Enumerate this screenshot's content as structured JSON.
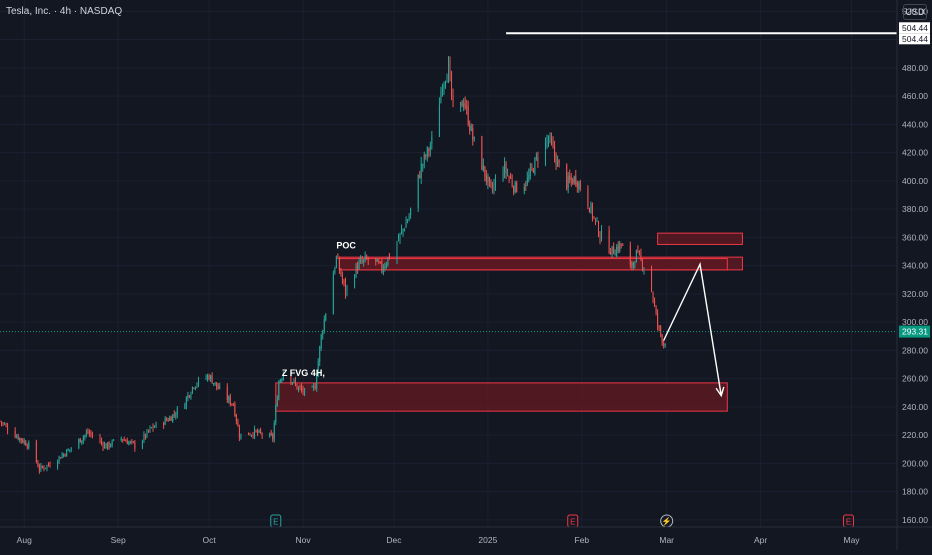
{
  "header": {
    "symbol": "Tesla, Inc. · 4h · NASDAQ",
    "currency": "USD"
  },
  "colors": {
    "background": "#131722",
    "up": "#26a69a",
    "down": "#ef5350",
    "axis_text": "#b2b5be",
    "zone_fill": "#5c1a22",
    "zone_stroke": "#f23645",
    "price_tag": "#089981"
  },
  "chart_data": {
    "type": "candlestick",
    "title": "Tesla, Inc. · 4h · NASDAQ",
    "y_ticks": [
      160,
      180,
      200,
      220,
      240,
      260,
      280,
      300,
      320,
      340,
      360,
      380,
      400,
      420,
      440,
      460,
      480,
      500,
      520
    ],
    "y_tick_labels": [
      "160.00",
      "180.00",
      "200.00",
      "220.00",
      "240.00",
      "260.00",
      "280.00",
      "300.00",
      "320.00",
      "340.00",
      "360.00",
      "380.00",
      "400.00",
      "420.00",
      "440.00",
      "460.00",
      "480.00",
      "500.00",
      "520.00"
    ],
    "ylim": [
      155,
      528
    ],
    "x_labels": [
      "Aug",
      "Sep",
      "Oct",
      "Nov",
      "Dec",
      "2025",
      "Feb",
      "Mar",
      "Apr",
      "May"
    ],
    "x_label_dates": [
      "2024-08-01",
      "2024-09-01",
      "2024-10-01",
      "2024-11-01",
      "2024-12-01",
      "2025-01-01",
      "2025-02-01",
      "2025-03-01",
      "2025-04-01",
      "2025-05-01"
    ],
    "xlim": [
      "2024-07-24",
      "2025-05-16"
    ],
    "current_price": "293.31",
    "current_price_value": 293.31,
    "horizontal_line": {
      "value": 504.44,
      "labels": [
        "504.44",
        "504.44"
      ],
      "start_date": "2025-01-07"
    },
    "price_path": [
      [
        "2024-07-24",
        230
      ],
      [
        "2024-07-28",
        222
      ],
      [
        "2024-08-03",
        212
      ],
      [
        "2024-08-06",
        196
      ],
      [
        "2024-08-10",
        200
      ],
      [
        "2024-08-16",
        210
      ],
      [
        "2024-08-22",
        222
      ],
      [
        "2024-08-28",
        212
      ],
      [
        "2024-09-02",
        218
      ],
      [
        "2024-09-07",
        212
      ],
      [
        "2024-09-12",
        225
      ],
      [
        "2024-09-18",
        232
      ],
      [
        "2024-09-22",
        240
      ],
      [
        "2024-09-26",
        256
      ],
      [
        "2024-10-01",
        262
      ],
      [
        "2024-10-05",
        250
      ],
      [
        "2024-10-09",
        242
      ],
      [
        "2024-10-11",
        220
      ],
      [
        "2024-10-16",
        222
      ],
      [
        "2024-10-22",
        218
      ],
      [
        "2024-10-24",
        258
      ],
      [
        "2024-10-26",
        266
      ],
      [
        "2024-10-30",
        254
      ],
      [
        "2024-11-03",
        248
      ],
      [
        "2024-11-05",
        255
      ],
      [
        "2024-11-07",
        290
      ],
      [
        "2024-11-10",
        325
      ],
      [
        "2024-11-12",
        345
      ],
      [
        "2024-11-15",
        322
      ],
      [
        "2024-11-19",
        340
      ],
      [
        "2024-11-23",
        345
      ],
      [
        "2024-11-27",
        338
      ],
      [
        "2024-12-01",
        352
      ],
      [
        "2024-12-06",
        375
      ],
      [
        "2024-12-10",
        410
      ],
      [
        "2024-12-14",
        430
      ],
      [
        "2024-12-17",
        470
      ],
      [
        "2024-12-19",
        480
      ],
      [
        "2024-12-21",
        440
      ],
      [
        "2024-12-24",
        458
      ],
      [
        "2024-12-27",
        430
      ],
      [
        "2024-12-31",
        405
      ],
      [
        "2025-01-02",
        392
      ],
      [
        "2025-01-06",
        410
      ],
      [
        "2025-01-10",
        395
      ],
      [
        "2025-01-14",
        400
      ],
      [
        "2025-01-18",
        420
      ],
      [
        "2025-01-21",
        430
      ],
      [
        "2025-01-24",
        412
      ],
      [
        "2025-01-27",
        398
      ],
      [
        "2025-01-30",
        402
      ],
      [
        "2025-02-03",
        385
      ],
      [
        "2025-02-07",
        362
      ],
      [
        "2025-02-11",
        350
      ],
      [
        "2025-02-14",
        355
      ],
      [
        "2025-02-17",
        338
      ],
      [
        "2025-02-19",
        348
      ],
      [
        "2025-02-23",
        335
      ],
      [
        "2025-02-26",
        298
      ],
      [
        "2025-02-28",
        285
      ],
      [
        "2025-03-02",
        293.31
      ]
    ],
    "zones": [
      {
        "from": "2024-10-23",
        "to": "2025-03-21",
        "low": 237,
        "high": 257
      },
      {
        "from": "2024-11-13",
        "to": "2025-03-26",
        "low": 337,
        "high": 346
      },
      {
        "from": "2024-11-13",
        "to": "2025-03-21",
        "low": 337,
        "high": 345
      },
      {
        "from": "2025-02-26",
        "to": "2025-03-26",
        "low": 355,
        "high": 363
      }
    ],
    "projection": [
      [
        "2025-02-28",
        287
      ],
      [
        "2025-03-12",
        341
      ],
      [
        "2025-03-19",
        248
      ]
    ],
    "annotations": [
      {
        "text": "POC",
        "date": "2024-11-12",
        "value": 352
      },
      {
        "text": "Z FVG 4H,",
        "date": "2024-10-25",
        "value": 262
      }
    ],
    "event_markers": [
      {
        "kind": "earnings",
        "symbol": "E",
        "date": "2024-10-23"
      },
      {
        "kind": "earnings",
        "symbol": "E",
        "date": "2025-01-29"
      },
      {
        "kind": "dividend",
        "symbol": "⚡",
        "date": "2025-03-01"
      },
      {
        "kind": "earnings",
        "symbol": "E",
        "date": "2025-04-30"
      }
    ]
  }
}
